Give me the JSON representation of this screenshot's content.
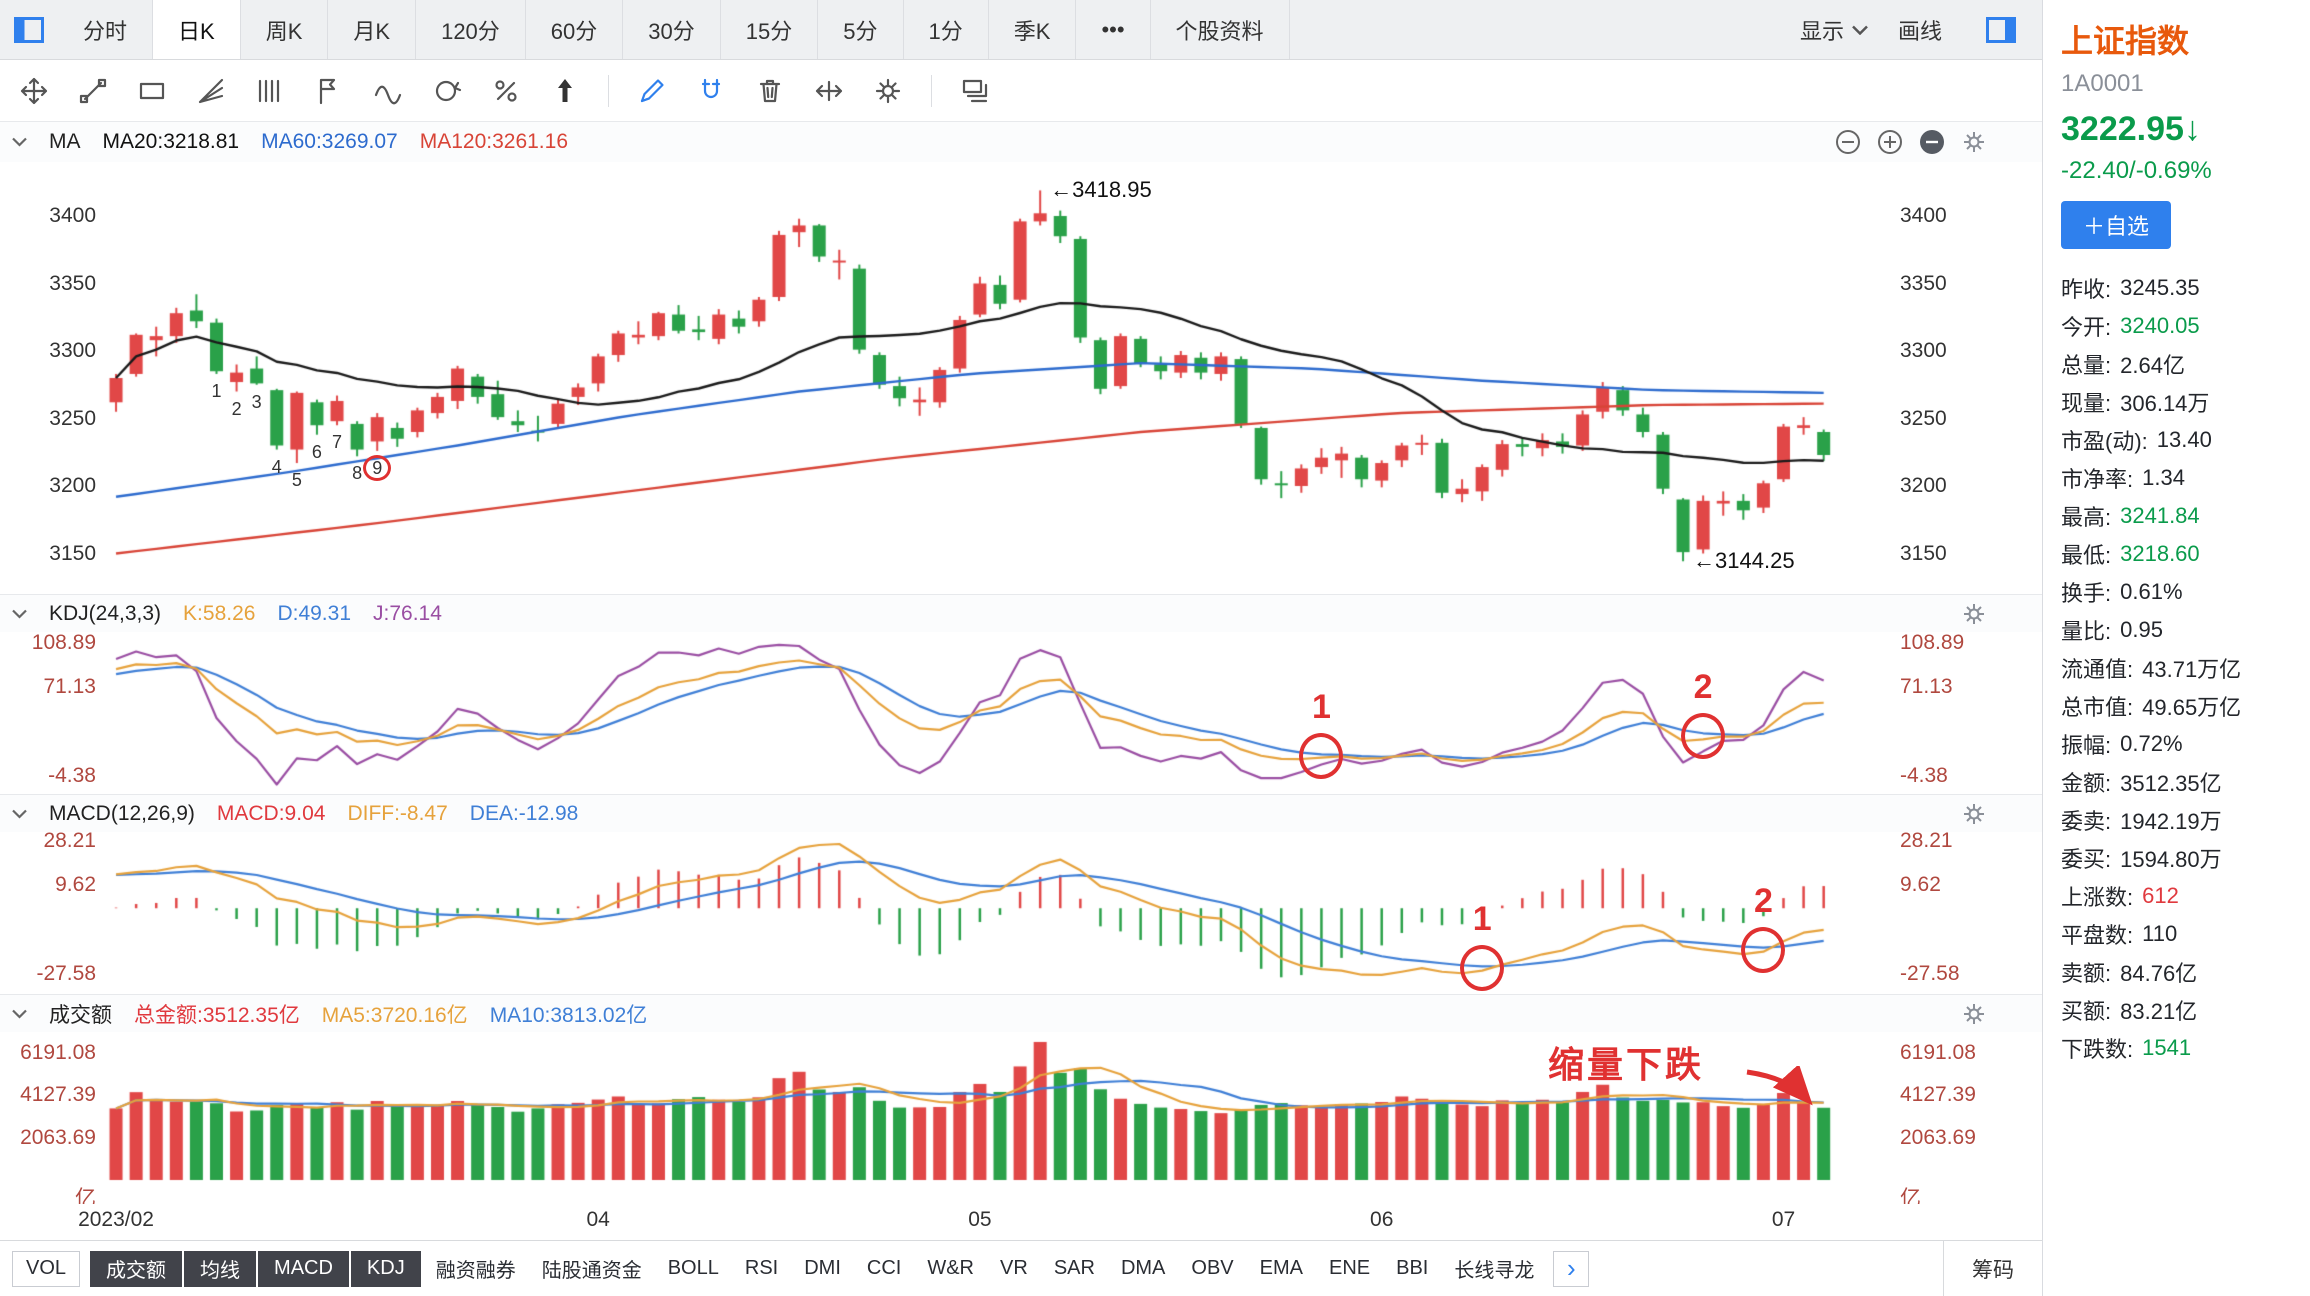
{
  "colors": {
    "up": "#e14747",
    "down": "#2aa149",
    "ma20": "#1a1a1a",
    "ma60": "#2d6bce",
    "ma120": "#d84437",
    "k": "#e6a23c",
    "d": "#3f7fd6",
    "j": "#9a4ea3",
    "diff": "#e6a23c",
    "dea": "#3f7fd6",
    "annotation": "#e03131",
    "accent": "#2f80ed",
    "up_text": "#e0393e",
    "down_text": "#0a9b4b"
  },
  "tabbar": {
    "tabs": [
      "分时",
      "日K",
      "周K",
      "月K",
      "120分",
      "60分",
      "30分",
      "15分",
      "5分",
      "1分",
      "季K",
      "•••",
      "个股资料"
    ],
    "active": "日K",
    "display_label": "显示",
    "draw_label": "画线"
  },
  "toolbar": {
    "tools": [
      "move",
      "line",
      "rect",
      "fan",
      "bars",
      "flag",
      "wave",
      "rotate",
      "percent",
      "arrow-up",
      "divider",
      "pencil",
      "magnet",
      "trash",
      "expand",
      "gear",
      "divider",
      "layers"
    ]
  },
  "panels": {
    "ma": {
      "title": "MA",
      "ma20": "MA20:3218.81",
      "ma60": "MA60:3269.07",
      "ma120": "MA120:3261.16"
    },
    "kdj": {
      "title": "KDJ(24,3,3)",
      "k": "K:58.26",
      "d": "D:49.31",
      "j": "J:76.14"
    },
    "macd": {
      "title": "MACD(12,26,9)",
      "macd": "MACD:9.04",
      "diff": "DIFF:-8.47",
      "dea": "DEA:-12.98"
    },
    "vol": {
      "title": "成交额",
      "total": "总金额:3512.35亿",
      "ma5": "MA5:3720.16亿",
      "ma10": "MA10:3813.02亿"
    }
  },
  "axes": {
    "main": [
      3400,
      3350,
      3300,
      3250,
      3200,
      3150
    ],
    "kdj": [
      108.89,
      71.13,
      -4.38
    ],
    "macd": [
      28.21,
      9.62,
      -27.58
    ],
    "vol": [
      6191.08,
      4127.39,
      2063.69
    ],
    "vol_unit": "亿"
  },
  "annotations": {
    "peak_label": {
      "text": "←3418.95",
      "index": 46,
      "price": 3418.95
    },
    "low_label": {
      "text": "←3144.25",
      "index": 78,
      "price": 3144.25
    },
    "sequence": {
      "indices": [
        5,
        6,
        7,
        8,
        9,
        10,
        11,
        12,
        13
      ],
      "labels": [
        "1",
        "2",
        "3",
        "4",
        "5",
        "6",
        "7",
        "8",
        "9"
      ],
      "circled_label": "9"
    },
    "kdj_circles": [
      {
        "label": "1",
        "index": 60
      },
      {
        "label": "2",
        "index": 79
      }
    ],
    "macd_circles": [
      {
        "label": "1",
        "index": 68
      },
      {
        "label": "2",
        "index": 82
      }
    ],
    "volume_note": {
      "text": "缩量下跌"
    }
  },
  "bottom_tabs": {
    "items": [
      {
        "label": "VOL",
        "style": "boxed"
      },
      {
        "label": "成交额",
        "style": "dark"
      },
      {
        "label": "均线",
        "style": "dark"
      },
      {
        "label": "MACD",
        "style": "dark"
      },
      {
        "label": "KDJ",
        "style": "dark"
      },
      {
        "label": "融资融券",
        "style": "plain"
      },
      {
        "label": "陆股通资金",
        "style": "plain"
      },
      {
        "label": "BOLL",
        "style": "plain"
      },
      {
        "label": "RSI",
        "style": "plain"
      },
      {
        "label": "DMI",
        "style": "plain"
      },
      {
        "label": "CCI",
        "style": "plain"
      },
      {
        "label": "W&R",
        "style": "plain"
      },
      {
        "label": "VR",
        "style": "plain"
      },
      {
        "label": "SAR",
        "style": "plain"
      },
      {
        "label": "DMA",
        "style": "plain"
      },
      {
        "label": "OBV",
        "style": "plain"
      },
      {
        "label": "EMA",
        "style": "plain"
      },
      {
        "label": "ENE",
        "style": "plain"
      },
      {
        "label": "BBI",
        "style": "plain"
      },
      {
        "label": "长线寻龙",
        "style": "plain"
      }
    ],
    "more_button": "›",
    "right_tab": "筹码"
  },
  "quote_panel": {
    "name": "上证指数",
    "code": "1A0001",
    "price": "3222.95",
    "direction": "↓",
    "change": "-22.40/-0.69%",
    "add_button": "＋自选",
    "stats": [
      {
        "label": "昨收:",
        "value": "3245.35"
      },
      {
        "label": "今开:",
        "value": "3240.05",
        "trend": "down"
      },
      {
        "label": "总量:",
        "value": "2.64亿"
      },
      {
        "label": "现量:",
        "value": "306.14万"
      },
      {
        "label": "市盈(动):",
        "value": "13.40"
      },
      {
        "label": "市净率:",
        "value": "1.34"
      },
      {
        "label": "最高:",
        "value": "3241.84",
        "trend": "down"
      },
      {
        "label": "最低:",
        "value": "3218.60",
        "trend": "down"
      },
      {
        "label": "换手:",
        "value": "0.61%"
      },
      {
        "label": "量比:",
        "value": "0.95"
      },
      {
        "label": "流通值:",
        "value": "43.71万亿"
      },
      {
        "label": "总市值:",
        "value": "49.65万亿"
      },
      {
        "label": "振幅:",
        "value": "0.72%"
      },
      {
        "label": "金额:",
        "value": "3512.35亿"
      },
      {
        "label": "委卖:",
        "value": "1942.19万"
      },
      {
        "label": "委买:",
        "value": "1594.80万"
      },
      {
        "label": "上涨数:",
        "value": "612",
        "trend": "up"
      },
      {
        "label": "平盘数:",
        "value": "110"
      },
      {
        "label": "卖额:",
        "value": "84.76亿"
      },
      {
        "label": "买额:",
        "value": "83.21亿"
      },
      {
        "label": "下跌数:",
        "value": "1541",
        "trend": "down"
      }
    ]
  },
  "chart_data": {
    "type": "candlestick",
    "title": "上证指数 日K 2023/02 - 2023/07",
    "slots": 89,
    "scales": {
      "main": [
        3120,
        3440
      ],
      "kdj": [
        -20,
        118
      ],
      "macd": [
        -36,
        32
      ],
      "vol": [
        0,
        7000
      ]
    },
    "x_months": [
      {
        "label": "2023/02",
        "index": 0
      },
      {
        "label": "04",
        "index": 24
      },
      {
        "label": "05",
        "index": 43
      },
      {
        "label": "06",
        "index": 63
      },
      {
        "label": "07",
        "index": 83
      }
    ],
    "candles": [
      [
        3262,
        3283,
        3255,
        3280,
        3480
      ],
      [
        3283,
        3313,
        3281,
        3312,
        4270
      ],
      [
        3308,
        3318,
        3296,
        3311,
        3930
      ],
      [
        3311,
        3332,
        3306,
        3328,
        3810
      ],
      [
        3330,
        3342,
        3317,
        3322,
        3800
      ],
      [
        3321,
        3324,
        3283,
        3285,
        3730
      ],
      [
        3277,
        3290,
        3270,
        3284,
        3330
      ],
      [
        3287,
        3296,
        3275,
        3276,
        3380
      ],
      [
        3271,
        3272,
        3227,
        3230,
        3650
      ],
      [
        3227,
        3270,
        3217,
        3269,
        3690
      ],
      [
        3262,
        3264,
        3238,
        3245,
        3550
      ],
      [
        3248,
        3267,
        3245,
        3263,
        3780
      ],
      [
        3246,
        3248,
        3222,
        3227,
        3420
      ],
      [
        3233,
        3254,
        3226,
        3251,
        3840
      ],
      [
        3243,
        3247,
        3229,
        3235,
        3620
      ],
      [
        3240,
        3258,
        3236,
        3256,
        3620
      ],
      [
        3254,
        3269,
        3250,
        3266,
        3650
      ],
      [
        3263,
        3289,
        3257,
        3287,
        3840
      ],
      [
        3281,
        3283,
        3261,
        3266,
        3660
      ],
      [
        3268,
        3278,
        3249,
        3251,
        3550
      ],
      [
        3248,
        3256,
        3240,
        3245,
        3320
      ],
      [
        3241,
        3252,
        3233,
        3240,
        3480
      ],
      [
        3246,
        3264,
        3243,
        3261,
        3680
      ],
      [
        3266,
        3276,
        3260,
        3273,
        3750
      ],
      [
        3276,
        3298,
        3270,
        3296,
        3910
      ],
      [
        3297,
        3315,
        3292,
        3313,
        4060
      ],
      [
        3310,
        3322,
        3305,
        3312,
        3680
      ],
      [
        3311,
        3329,
        3308,
        3328,
        3720
      ],
      [
        3327,
        3334,
        3313,
        3315,
        3930
      ],
      [
        3316,
        3326,
        3308,
        3314,
        4030
      ],
      [
        3309,
        3331,
        3305,
        3327,
        3900
      ],
      [
        3324,
        3330,
        3313,
        3318,
        3800
      ],
      [
        3322,
        3340,
        3318,
        3338,
        4020
      ],
      [
        3340,
        3389,
        3337,
        3386,
        4950
      ],
      [
        3388,
        3398,
        3377,
        3393,
        5260
      ],
      [
        3393,
        3394,
        3366,
        3370,
        4400
      ],
      [
        3366,
        3375,
        3353,
        3367,
        4280
      ],
      [
        3361,
        3364,
        3298,
        3301,
        4510
      ],
      [
        3297,
        3299,
        3272,
        3275,
        3850
      ],
      [
        3274,
        3281,
        3259,
        3265,
        3520
      ],
      [
        3262,
        3273,
        3252,
        3264,
        3530
      ],
      [
        3262,
        3288,
        3258,
        3286,
        3550
      ],
      [
        3287,
        3326,
        3284,
        3323,
        4280
      ],
      [
        3327,
        3355,
        3325,
        3350,
        4670
      ],
      [
        3349,
        3356,
        3331,
        3335,
        4280
      ],
      [
        3338,
        3398,
        3336,
        3396,
        5520
      ],
      [
        3396,
        3418.95,
        3393,
        3402,
        6710
      ],
      [
        3400,
        3404,
        3380,
        3385,
        5210
      ],
      [
        3383,
        3385,
        3306,
        3310,
        5420
      ],
      [
        3308,
        3310,
        3268,
        3272,
        4410
      ],
      [
        3274,
        3313,
        3272,
        3311,
        3950
      ],
      [
        3309,
        3311,
        3288,
        3291,
        3700
      ],
      [
        3290,
        3296,
        3279,
        3285,
        3520
      ],
      [
        3284,
        3300,
        3280,
        3297,
        3450
      ],
      [
        3295,
        3299,
        3279,
        3284,
        3350
      ],
      [
        3283,
        3299,
        3278,
        3296,
        3250
      ],
      [
        3294,
        3296,
        3243,
        3246,
        3430
      ],
      [
        3243,
        3244,
        3201,
        3205,
        3650
      ],
      [
        3202,
        3211,
        3191,
        3201,
        3740
      ],
      [
        3200,
        3216,
        3195,
        3213,
        3630
      ],
      [
        3214,
        3228,
        3209,
        3221,
        3560
      ],
      [
        3219,
        3229,
        3206,
        3224,
        3680
      ],
      [
        3221,
        3223,
        3199,
        3205,
        3720
      ],
      [
        3204,
        3219,
        3199,
        3217,
        3790
      ],
      [
        3219,
        3232,
        3214,
        3230,
        4060
      ],
      [
        3231,
        3238,
        3223,
        3232,
        3950
      ],
      [
        3232,
        3235,
        3191,
        3195,
        3730
      ],
      [
        3194,
        3205,
        3188,
        3198,
        3670
      ],
      [
        3196,
        3216,
        3189,
        3214,
        3590
      ],
      [
        3212,
        3234,
        3207,
        3231,
        3870
      ],
      [
        3231,
        3236,
        3222,
        3229,
        3760
      ],
      [
        3228,
        3239,
        3222,
        3234,
        3900
      ],
      [
        3233,
        3239,
        3224,
        3229,
        3770
      ],
      [
        3230,
        3256,
        3226,
        3253,
        4280
      ],
      [
        3255,
        3277,
        3250,
        3273,
        4630
      ],
      [
        3271,
        3274,
        3252,
        3256,
        4010
      ],
      [
        3253,
        3258,
        3236,
        3240,
        3850
      ],
      [
        3238,
        3240,
        3194,
        3198,
        3890
      ],
      [
        3190,
        3191,
        3144.25,
        3151,
        3770
      ],
      [
        3153,
        3193,
        3150,
        3189,
        3780
      ],
      [
        3187,
        3196,
        3178,
        3189,
        3590
      ],
      [
        3189,
        3194,
        3175,
        3182,
        3510
      ],
      [
        3184,
        3204,
        3180,
        3202,
        3700
      ],
      [
        3205,
        3246,
        3203,
        3244,
        4230
      ],
      [
        3243,
        3251,
        3238,
        3245,
        3830
      ],
      [
        3240,
        3241.84,
        3218.6,
        3222.95,
        3512
      ]
    ],
    "ma60_points": [
      [
        0,
        3192
      ],
      [
        0.1,
        3210
      ],
      [
        0.2,
        3230
      ],
      [
        0.3,
        3252
      ],
      [
        0.4,
        3270
      ],
      [
        0.5,
        3283
      ],
      [
        0.6,
        3291
      ],
      [
        0.7,
        3287
      ],
      [
        0.8,
        3278
      ],
      [
        0.9,
        3271
      ],
      [
        1,
        3269
      ]
    ],
    "ma120_points": [
      [
        0,
        3150
      ],
      [
        0.15,
        3172
      ],
      [
        0.3,
        3196
      ],
      [
        0.45,
        3220
      ],
      [
        0.6,
        3240
      ],
      [
        0.75,
        3254
      ],
      [
        0.9,
        3260
      ],
      [
        1,
        3261
      ]
    ]
  }
}
